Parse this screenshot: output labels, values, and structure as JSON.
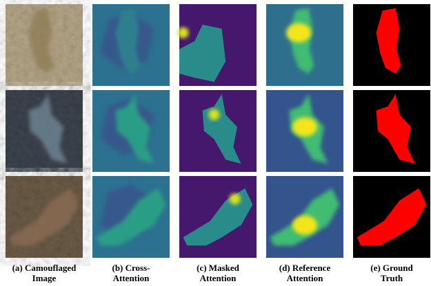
{
  "captions": [
    [
      "(a) Camouflaged",
      "Image"
    ],
    [
      "(b) Cross-",
      "Attention"
    ],
    [
      "(c) Masked",
      "Attention"
    ],
    [
      "(d) Reference",
      "Attention"
    ],
    [
      "(e) Ground",
      "Truth"
    ]
  ]
}
